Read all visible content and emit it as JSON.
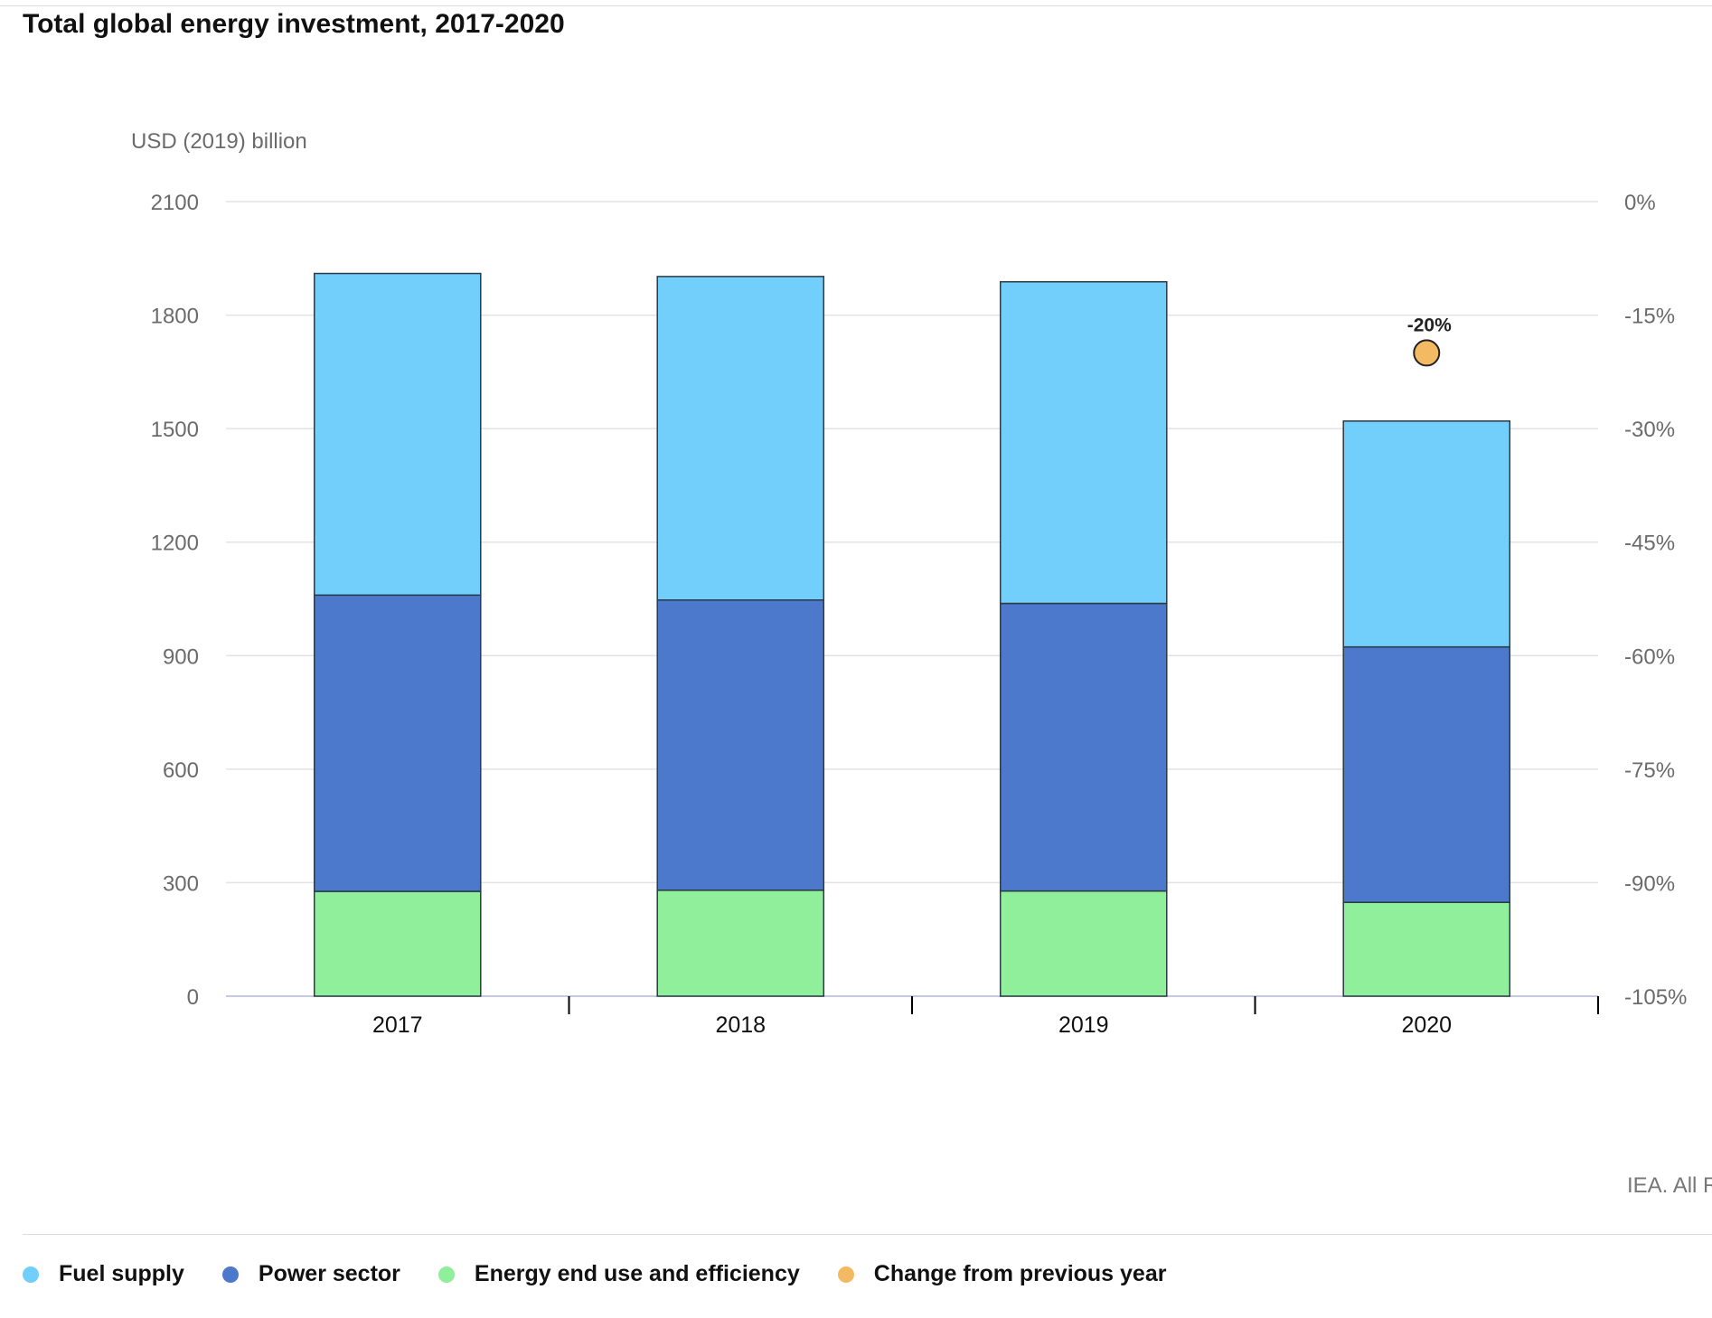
{
  "header": {
    "title": "Total global energy investment, 2017-2020"
  },
  "footer": {
    "credit": "IEA. All R"
  },
  "colors": {
    "fuel_supply": "#72cefa",
    "power_sector": "#4c79cc",
    "end_use": "#90ef9a",
    "change": "#f4b963",
    "grid": "#e3e3e3",
    "axis": "#c8c8e4"
  },
  "legend": [
    {
      "label": "Fuel supply",
      "color": "#72cefa",
      "icon": "circle-marker"
    },
    {
      "label": "Power sector",
      "color": "#4c79cc",
      "icon": "circle-marker"
    },
    {
      "label": "Energy end use and efficiency",
      "color": "#90ef9a",
      "icon": "circle-marker"
    },
    {
      "label": "Change from previous year",
      "color": "#f4b963",
      "icon": "circle-marker"
    }
  ],
  "chart_data": {
    "type": "bar",
    "stacked": true,
    "title": "Total global energy investment, 2017-2020",
    "ylabel": "USD (2019) billion",
    "categories": [
      "2017",
      "2018",
      "2019",
      "2020"
    ],
    "ylim": [
      0,
      2100
    ],
    "yticks": [
      0,
      300,
      600,
      900,
      1200,
      1500,
      1800,
      2100
    ],
    "y2lim": [
      -105,
      0
    ],
    "y2ticks": [
      -105,
      -90,
      -75,
      -60,
      -45,
      -30,
      -15,
      0
    ],
    "y2tick_labels": [
      "-105%",
      "-90%",
      "-75%",
      "-60%",
      "-45%",
      "-30%",
      "-15%",
      "0%"
    ],
    "series": [
      {
        "name": "Energy end use and efficiency",
        "color": "#90ef9a",
        "values": [
          277,
          280,
          278,
          248
        ]
      },
      {
        "name": "Power sector",
        "color": "#4c79cc",
        "values": [
          783,
          767,
          760,
          675
        ]
      },
      {
        "name": "Fuel supply",
        "color": "#72cefa",
        "values": [
          850,
          855,
          850,
          597
        ]
      }
    ],
    "secondary_series": {
      "name": "Change from previous year",
      "color": "#f4b963",
      "type": "scatter",
      "points": [
        {
          "category": "2020",
          "value": -20,
          "label": "-20%"
        }
      ]
    },
    "grid": true,
    "legend_position": "bottom"
  }
}
